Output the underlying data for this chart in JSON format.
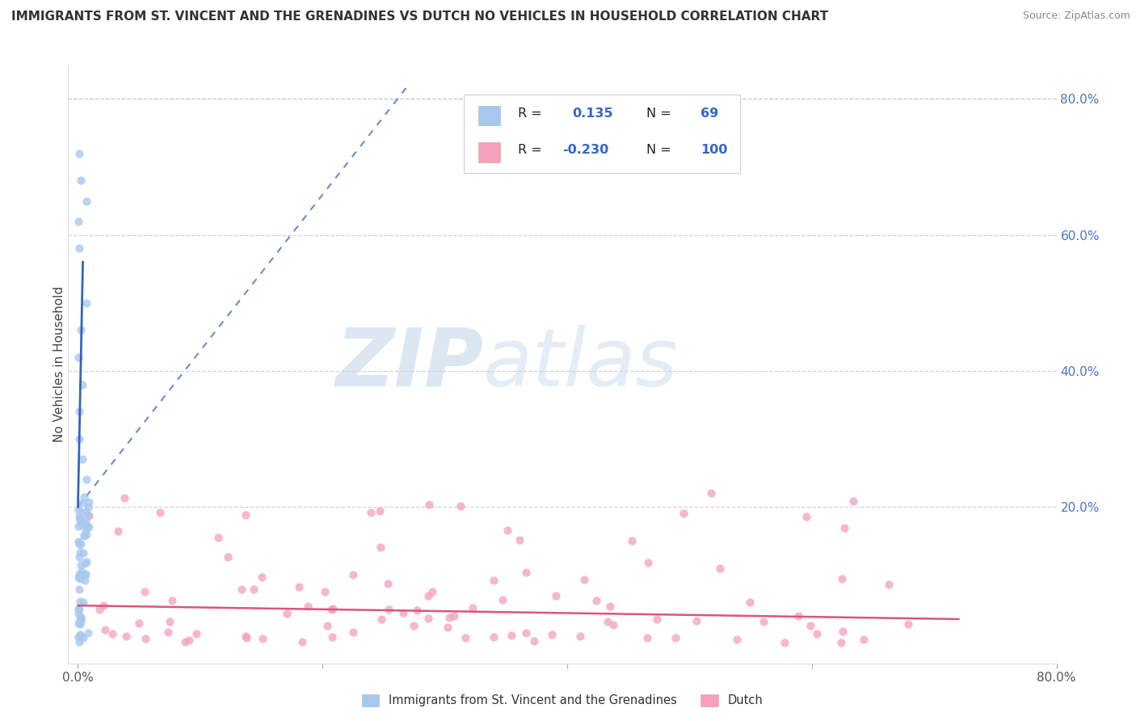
{
  "title": "IMMIGRANTS FROM ST. VINCENT AND THE GRENADINES VS DUTCH NO VEHICLES IN HOUSEHOLD CORRELATION CHART",
  "source": "Source: ZipAtlas.com",
  "ylabel": "No Vehicles in Household",
  "right_yticks": [
    "80.0%",
    "60.0%",
    "40.0%",
    "20.0%"
  ],
  "right_ytick_vals": [
    0.8,
    0.6,
    0.4,
    0.2
  ],
  "legend_label1": "Immigrants from St. Vincent and the Grenadines",
  "legend_label2": "Dutch",
  "R1": 0.135,
  "N1": 69,
  "R2": -0.23,
  "N2": 100,
  "color1": "#a8c8f0",
  "color2": "#f4a0b8",
  "trend_color1": "#3366bb",
  "trend_color2": "#dd5577",
  "background_color": "#ffffff",
  "watermark_zip": "ZIP",
  "watermark_atlas": "atlas",
  "xmax": 0.8,
  "ymax": 0.85
}
